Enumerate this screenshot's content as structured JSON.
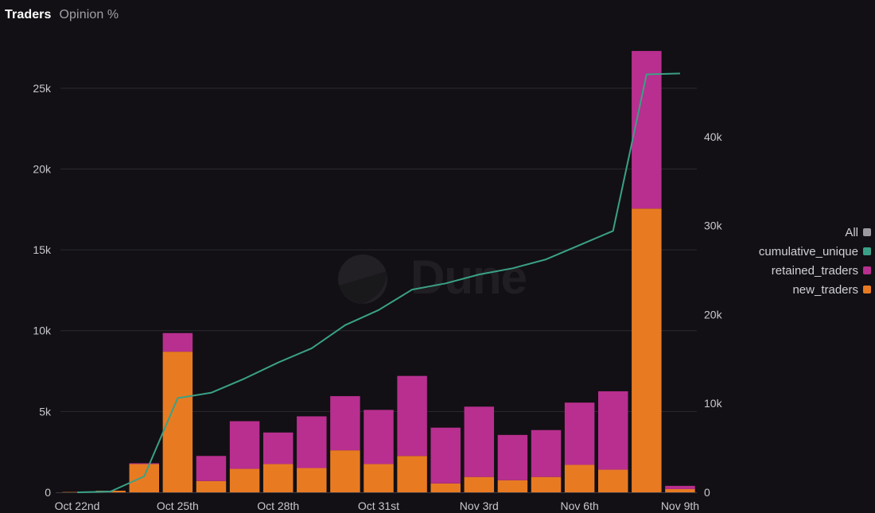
{
  "tabs": [
    {
      "label": "Traders"
    },
    {
      "label": "Opinion %"
    }
  ],
  "watermark": {
    "text": "Dune"
  },
  "legend": {
    "items": [
      {
        "label": "All",
        "color": "#9a9aa0"
      },
      {
        "label": "cumulative_unique",
        "color": "#3aa187"
      },
      {
        "label": "retained_traders",
        "color": "#b82f8f"
      },
      {
        "label": "new_traders",
        "color": "#e87b22"
      }
    ]
  },
  "colors": {
    "new_traders": "#e87b22",
    "retained_traders": "#b82f8f",
    "cumulative": "#3aa187",
    "grid": "#2b2a30",
    "axis_text": "#c8c8cc",
    "background": "#121014"
  },
  "chart_data": {
    "type": "bar",
    "stacked": true,
    "title": "",
    "categories": [
      "Oct 22",
      "Oct 23",
      "Oct 24",
      "Oct 25",
      "Oct 26",
      "Oct 27",
      "Oct 28",
      "Oct 29",
      "Oct 30",
      "Oct 31",
      "Nov 1",
      "Nov 2",
      "Nov 3",
      "Nov 4",
      "Nov 5",
      "Nov 6",
      "Nov 7",
      "Nov 8",
      "Nov 9"
    ],
    "x_tick_labels": [
      {
        "index": 0,
        "label": "Oct 22nd"
      },
      {
        "index": 3,
        "label": "Oct 25th"
      },
      {
        "index": 6,
        "label": "Oct 28th"
      },
      {
        "index": 9,
        "label": "Oct 31st"
      },
      {
        "index": 12,
        "label": "Nov 3rd"
      },
      {
        "index": 15,
        "label": "Nov 6th"
      },
      {
        "index": 18,
        "label": "Nov 9th"
      }
    ],
    "series": [
      {
        "name": "new_traders",
        "axis": "left",
        "kind": "bar",
        "values": [
          20,
          100,
          1750,
          8700,
          700,
          1450,
          1750,
          1500,
          2600,
          1750,
          2250,
          550,
          950,
          750,
          950,
          1700,
          1400,
          17550,
          200
        ]
      },
      {
        "name": "retained_traders",
        "axis": "left",
        "kind": "bar",
        "values": [
          0,
          0,
          50,
          1150,
          1550,
          2950,
          1950,
          3200,
          3350,
          3350,
          4950,
          3450,
          4350,
          2800,
          2900,
          3850,
          4850,
          9750,
          200
        ]
      },
      {
        "name": "cumulative_unique",
        "axis": "right",
        "kind": "line",
        "values": [
          0,
          100,
          1800,
          10600,
          11200,
          12800,
          14600,
          16200,
          18800,
          20500,
          22800,
          23500,
          24500,
          25200,
          26200,
          27800,
          29400,
          47000,
          47100
        ]
      }
    ],
    "y_left": {
      "min": 0,
      "max": 27500,
      "ticks": [
        0,
        5000,
        10000,
        15000,
        20000,
        25000
      ],
      "tick_labels": [
        "0",
        "5k",
        "10k",
        "15k",
        "20k",
        "25k"
      ]
    },
    "y_right": {
      "min": 0,
      "max": 50000,
      "ticks": [
        0,
        10000,
        20000,
        30000,
        40000
      ],
      "tick_labels": [
        "0",
        "10k",
        "20k",
        "30k",
        "40k"
      ]
    },
    "grid": true,
    "legend_position": "right"
  }
}
